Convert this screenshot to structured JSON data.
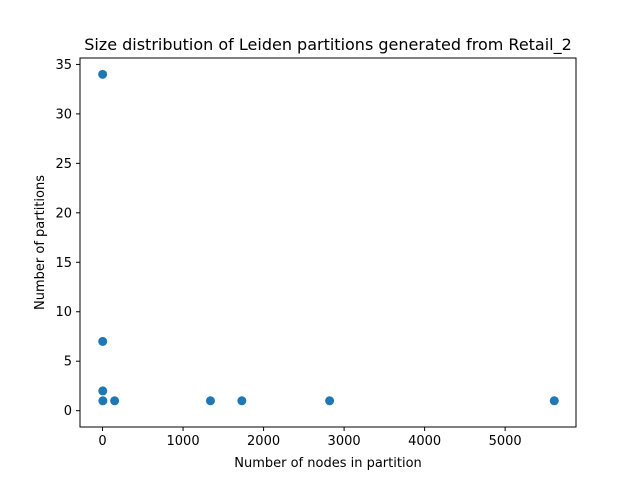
{
  "chart_data": {
    "type": "scatter",
    "title": "Size distribution of Leiden partitions generated from Retail_2",
    "xlabel": "Number of nodes in partition",
    "ylabel": "Number of partitions",
    "xlim": [
      -280,
      5880
    ],
    "ylim": [
      -1.65,
      35.65
    ],
    "xticks": [
      0,
      1000,
      2000,
      3000,
      4000,
      5000
    ],
    "yticks": [
      0,
      5,
      10,
      15,
      20,
      25,
      30,
      35
    ],
    "grid": false,
    "marker_color": "#1f77b4",
    "points": [
      {
        "x": 1,
        "y": 34
      },
      {
        "x": 2,
        "y": 7
      },
      {
        "x": 3,
        "y": 2
      },
      {
        "x": 4,
        "y": 1
      },
      {
        "x": 150,
        "y": 1
      },
      {
        "x": 1340,
        "y": 1
      },
      {
        "x": 1730,
        "y": 1
      },
      {
        "x": 2820,
        "y": 1
      },
      {
        "x": 5610,
        "y": 1
      }
    ]
  }
}
